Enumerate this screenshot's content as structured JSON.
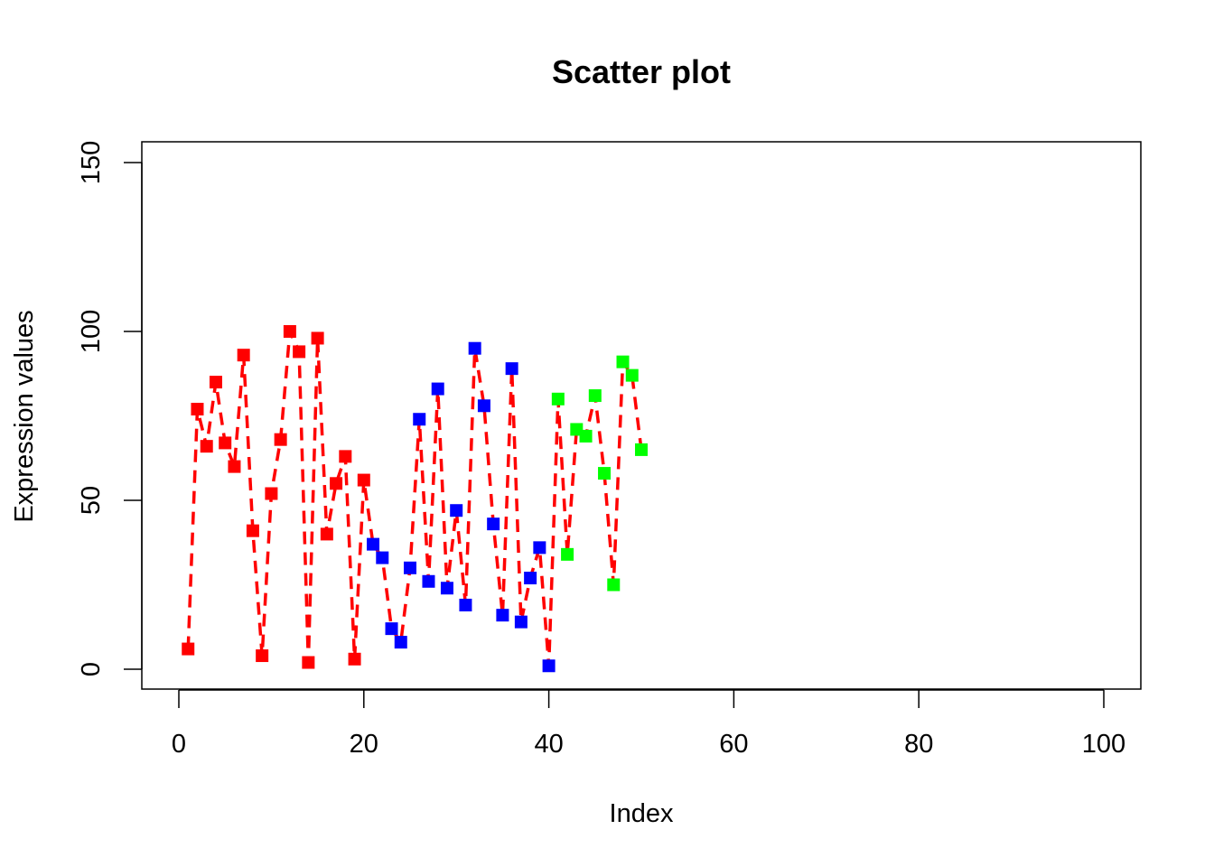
{
  "chart_data": {
    "type": "scatter",
    "title": "Scatter plot",
    "xlabel": "Index",
    "ylabel": "Expression values",
    "xlim": [
      0,
      100
    ],
    "ylim": [
      0,
      150
    ],
    "x_ticks": [
      0,
      20,
      40,
      60,
      80,
      100
    ],
    "y_ticks": [
      0,
      50,
      100,
      150
    ],
    "grid": false,
    "line": {
      "color": "#ff0000",
      "style": "dashed",
      "connects": "all points in index order"
    },
    "marker": "square",
    "series": [
      {
        "color": "#ff0000",
        "x": [
          1,
          2,
          3,
          4,
          5,
          6,
          7,
          8,
          9,
          10,
          11,
          12,
          13,
          14,
          15,
          16,
          17,
          18,
          19,
          20
        ],
        "y": [
          6,
          77,
          66,
          85,
          67,
          60,
          93,
          41,
          4,
          52,
          68,
          100,
          94,
          2,
          98,
          40,
          55,
          63,
          3,
          56
        ]
      },
      {
        "color": "#0000ff",
        "x": [
          21,
          22,
          23,
          24,
          25,
          26,
          27,
          28,
          29,
          30,
          31,
          32,
          33,
          34,
          35,
          36,
          37,
          38,
          39,
          40
        ],
        "y": [
          37,
          33,
          12,
          8,
          30,
          74,
          26,
          83,
          24,
          47,
          19,
          95,
          78,
          43,
          16,
          89,
          14,
          27,
          36,
          1
        ]
      },
      {
        "color": "#00ff00",
        "x": [
          41,
          42,
          43,
          44,
          45,
          46,
          47,
          48,
          49,
          50
        ],
        "y": [
          80,
          34,
          71,
          69,
          81,
          58,
          25,
          91,
          87,
          65
        ]
      }
    ]
  }
}
